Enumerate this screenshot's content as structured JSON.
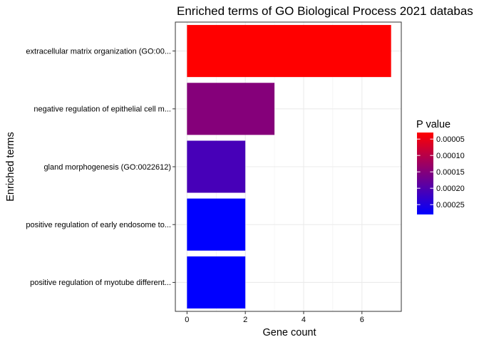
{
  "chart_data": {
    "type": "bar",
    "orientation": "horizontal",
    "title": "Enriched terms of GO Biological Process 2021 databas",
    "xlabel": "Gene count",
    "ylabel": "Enriched terms",
    "categories": [
      "extracellular matrix organization (GO:00...",
      "negative regulation of epithelial cell m...",
      "gland morphogenesis (GO:0022612)",
      "positive regulation of early endosome to...",
      "positive regulation of myotube different..."
    ],
    "values": [
      7,
      3,
      2,
      2,
      2
    ],
    "p_values": [
      3e-05,
      0.00015,
      0.00021,
      0.00028,
      0.00028
    ],
    "xlim": [
      -0.4,
      7.35
    ],
    "xticks": [
      0,
      2,
      4,
      6
    ],
    "grid": true,
    "legend": {
      "title": "P value",
      "position": "right",
      "range": [
        3e-05,
        0.00028
      ],
      "ticks": [
        {
          "value": 5e-05,
          "label": "0.00005"
        },
        {
          "value": 0.0001,
          "label": "0.00010"
        },
        {
          "value": 0.00015,
          "label": "0.00015"
        },
        {
          "value": 0.0002,
          "label": "0.00020"
        },
        {
          "value": 0.00025,
          "label": "0.00025"
        }
      ],
      "low_color": "#ff0000",
      "high_color": "#0000ff"
    }
  }
}
